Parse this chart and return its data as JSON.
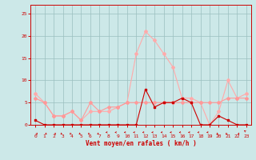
{
  "hours": [
    0,
    1,
    2,
    3,
    4,
    5,
    6,
    7,
    8,
    9,
    10,
    11,
    12,
    13,
    14,
    15,
    16,
    17,
    18,
    19,
    20,
    21,
    22,
    23
  ],
  "wind_avg": [
    1,
    0,
    0,
    0,
    0,
    0,
    0,
    0,
    0,
    0,
    0,
    0,
    8,
    4,
    5,
    5,
    6,
    5,
    0,
    0,
    2,
    1,
    0,
    0
  ],
  "wind_gust": [
    7,
    5,
    2,
    2,
    3,
    1,
    3,
    3,
    3,
    4,
    5,
    16,
    21,
    19,
    16,
    13,
    6,
    6,
    5,
    0,
    3,
    10,
    6,
    7
  ],
  "wind_med": [
    6,
    5,
    2,
    2,
    3,
    1,
    5,
    3,
    4,
    4,
    5,
    5,
    5,
    5,
    5,
    5,
    5,
    5,
    5,
    5,
    5,
    6,
    6,
    6
  ],
  "wind_dir": [
    45,
    45,
    45,
    315,
    315,
    315,
    315,
    315,
    270,
    270,
    270,
    270,
    270,
    270,
    270,
    270,
    270,
    270,
    270,
    270,
    315,
    315,
    45,
    225
  ],
  "bg_color": "#cce8e8",
  "grid_color": "#9bbfbf",
  "line_dark_color": "#cc0000",
  "line_gust_color": "#ffaaaa",
  "line_med_color": "#ff9999",
  "axis_color": "#cc0000",
  "xlabel": "Vent moyen/en rafales ( km/h )",
  "ylim": [
    0,
    27
  ],
  "yticks": [
    0,
    5,
    10,
    15,
    20,
    25
  ],
  "xticks": [
    0,
    1,
    2,
    3,
    4,
    5,
    6,
    7,
    8,
    9,
    10,
    11,
    12,
    13,
    14,
    15,
    16,
    17,
    18,
    19,
    20,
    21,
    22,
    23
  ]
}
